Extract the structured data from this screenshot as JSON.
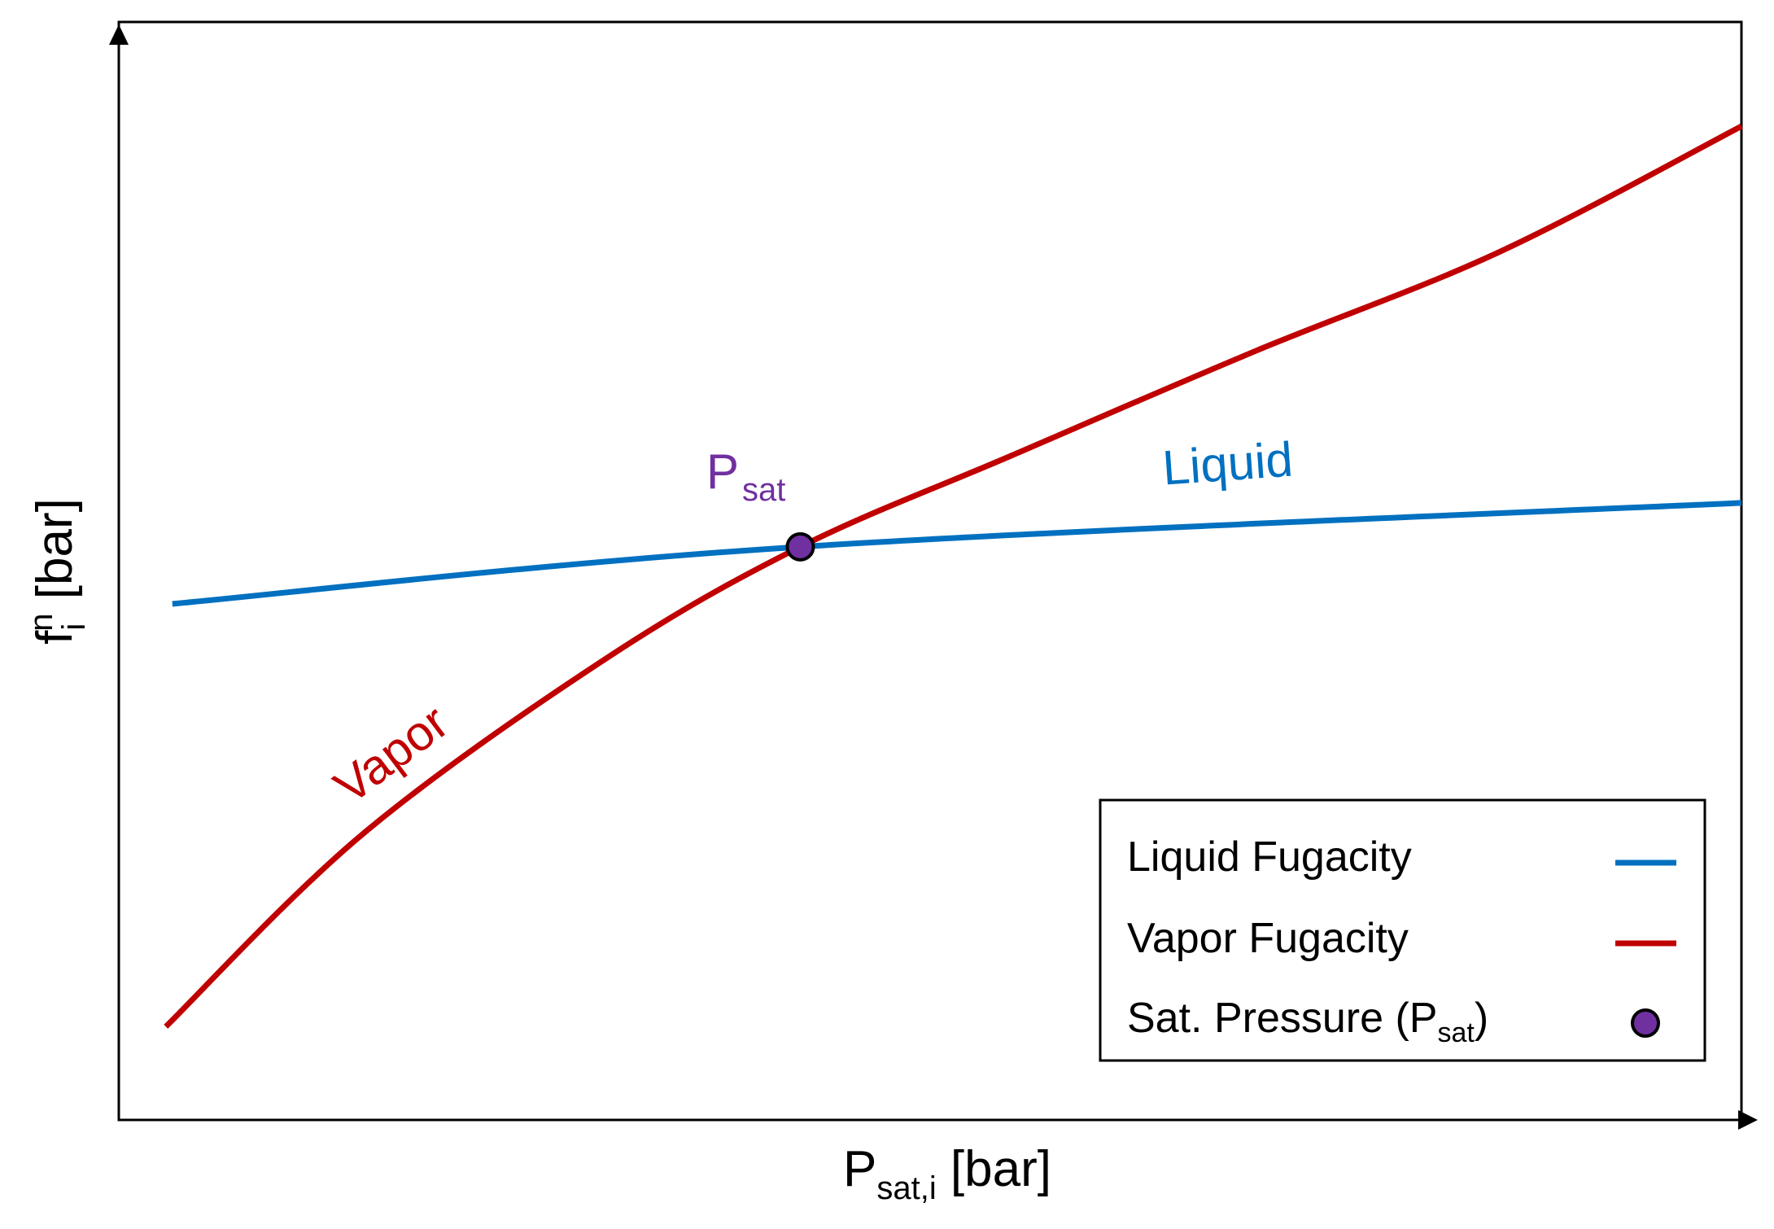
{
  "chart_data": {
    "type": "line",
    "xlabel": {
      "main": "P",
      "sub": "sat,i",
      "unit": " [bar]"
    },
    "ylabel": {
      "main": "f",
      "sub": "i",
      "sup": "n",
      "unit": " [bar]"
    },
    "xlim": [
      0,
      100
    ],
    "ylim": [
      0,
      100
    ],
    "grid": false,
    "ticks": false,
    "legend_position": "bottom-right",
    "series": [
      {
        "name": "Liquid Fugacity",
        "inline_label": "Liquid",
        "color": "#0070c0",
        "x": [
          3.3,
          42,
          100
        ],
        "y": [
          47,
          52.2,
          56.2
        ]
      },
      {
        "name": "Vapor Fugacity",
        "inline_label": "Vapor",
        "color": "#c00000",
        "x": [
          2.9,
          15,
          30,
          42,
          55,
          70,
          85,
          100
        ],
        "y": [
          8.5,
          26,
          42,
          52.2,
          60.5,
          70,
          79,
          90.5
        ]
      }
    ],
    "points": [
      {
        "name": "Sat. Pressure (P_sat)",
        "legend": {
          "main": "Sat. Pressure (P",
          "sub": "sat",
          "tail": ")"
        },
        "annotation": {
          "main": "P",
          "sub": "sat"
        },
        "color": "#7030a0",
        "x": 42,
        "y": 52.2
      }
    ]
  }
}
